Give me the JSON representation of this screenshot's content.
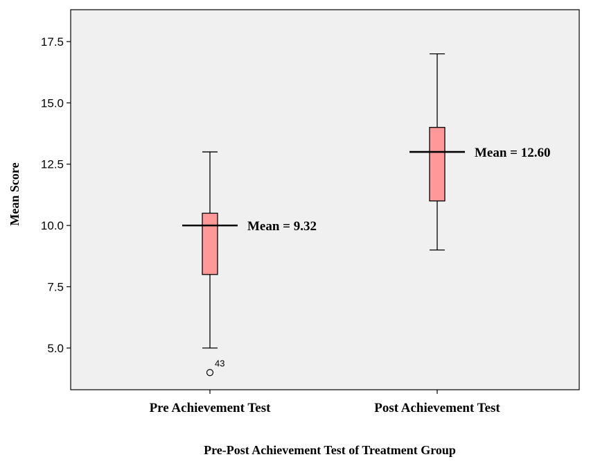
{
  "chart_data": {
    "type": "box",
    "xlabel": "Pre-Post Achievement Test of Treatment Group",
    "ylabel": "Mean Score",
    "ylim": [
      3.3,
      18.8
    ],
    "yticks": [
      5.0,
      7.5,
      10.0,
      12.5,
      15.0,
      17.5
    ],
    "ytick_labels": [
      "5.0",
      "7.5",
      "10.0",
      "12.5",
      "15.0",
      "17.5"
    ],
    "grid": false,
    "colors": {
      "box_fill": "#ff9999",
      "plot_bg": "#f0f0f0",
      "line": "#000000"
    },
    "categories": [
      "Pre Achievement Test",
      "Post Achievement Test"
    ],
    "boxes": [
      {
        "category": "Pre Achievement Test",
        "whisker_low": 5.0,
        "q1": 8.0,
        "median": 10.0,
        "q3": 10.5,
        "whisker_high": 13.0,
        "outliers": [
          {
            "value": 4.0,
            "label": "43"
          }
        ],
        "mean_label": "Mean = 9.32"
      },
      {
        "category": "Post Achievement Test",
        "whisker_low": 9.0,
        "q1": 11.0,
        "median": 13.0,
        "q3": 14.0,
        "whisker_high": 17.0,
        "outliers": [],
        "mean_label": "Mean = 12.60"
      }
    ]
  }
}
